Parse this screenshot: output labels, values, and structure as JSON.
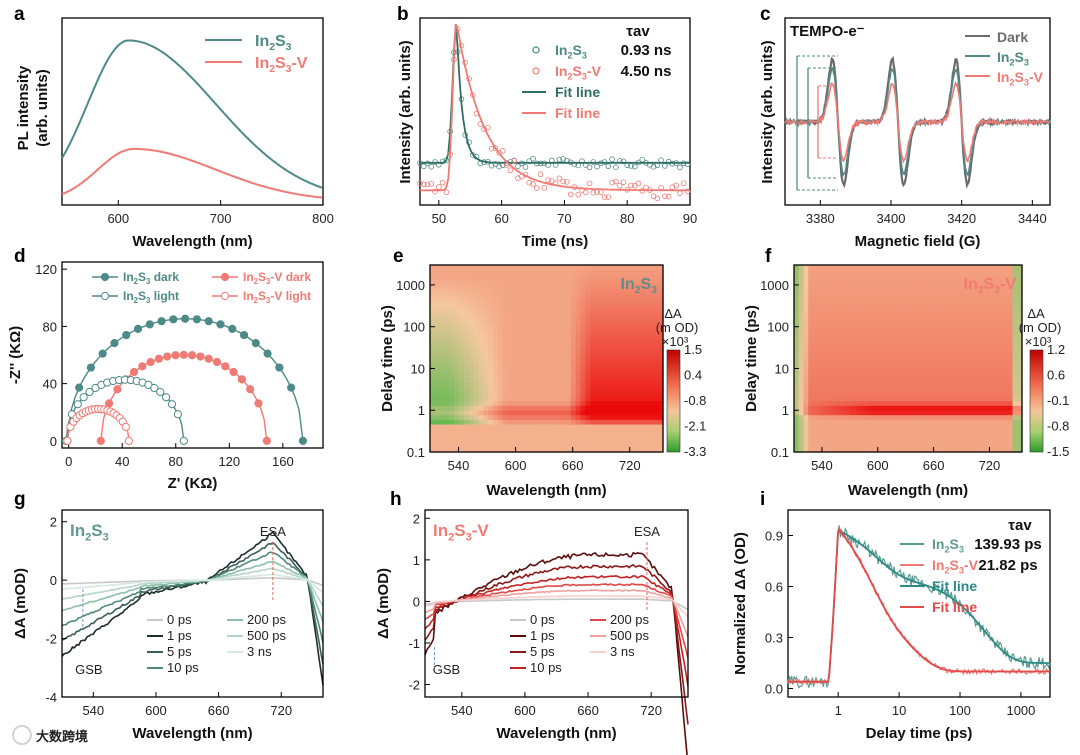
{
  "colors": {
    "teal": "#4e8a87",
    "salmon": "#f07a74",
    "tealDark": "#1f4a44",
    "redDark": "#7a1414"
  },
  "watermark": "大数跨境",
  "chart_data": [
    {
      "panel": "a",
      "type": "line",
      "xlabel": "Wavelength (nm)",
      "ylabel": "PL intensity (arb. units)",
      "xlim": [
        545,
        800
      ],
      "xticks": [
        600,
        700,
        800
      ],
      "legend": [
        "In2S3",
        "In2S3-V"
      ],
      "series": [
        {
          "name": "In2S3",
          "color": "#4e8a87",
          "peak_x": 610,
          "peak_y": 0.86,
          "width_l": 40,
          "width_r": 85,
          "base": 0.02
        },
        {
          "name": "In2S3-V",
          "color": "#f07a74",
          "peak_x": 615,
          "peak_y": 0.28,
          "width_l": 35,
          "width_r": 80,
          "base": 0.02
        }
      ]
    },
    {
      "panel": "b",
      "type": "scatter+line",
      "xlabel": "Time (ns)",
      "ylabel": "Intensity (arb. units)",
      "xlim": [
        47,
        90
      ],
      "xticks": [
        50,
        60,
        70,
        80,
        90
      ],
      "legend_header": "τav",
      "legend": [
        {
          "name": "In2S3",
          "value": "0.93 ns",
          "kind": "points",
          "color": "#4e8a87"
        },
        {
          "name": "In2S3-V",
          "value": "4.50 ns",
          "kind": "points",
          "color": "#f07a74"
        },
        {
          "name": "Fit line",
          "kind": "line",
          "color": "#2f6f66"
        },
        {
          "name": "Fit line",
          "kind": "line",
          "color": "#f07a74"
        }
      ],
      "series": [
        {
          "name": "In2S3",
          "t0": 52.8,
          "tau": 0.93,
          "base": 0.23,
          "color": "#4e8a87"
        },
        {
          "name": "In2S3-V",
          "t0": 52.8,
          "tau": 4.5,
          "base": 0.08,
          "color": "#f07a74"
        }
      ]
    },
    {
      "panel": "c",
      "type": "line",
      "title": "TEMPO-e⁻",
      "xlabel": "Magnetic field (G)",
      "ylabel": "Intensity (arb. units)",
      "xlim": [
        3370,
        3445
      ],
      "xticks": [
        3380,
        3400,
        3420,
        3440
      ],
      "legend": [
        "Dark",
        "In2S3",
        "In2S3-V"
      ],
      "lines_at": [
        3385,
        3402,
        3420
      ],
      "series": [
        {
          "name": "Dark",
          "amp": 1.0,
          "color": "#6b6b6b"
        },
        {
          "name": "In2S3",
          "amp": 0.85,
          "color": "#4e8a87"
        },
        {
          "name": "In2S3-V",
          "amp": 0.62,
          "color": "#f07a74"
        }
      ]
    },
    {
      "panel": "d",
      "type": "scatter",
      "xlabel": "Z' (KΩ)",
      "ylabel": "-Z'' (KΩ)",
      "xlim": [
        -5,
        190
      ],
      "ylim": [
        -5,
        125
      ],
      "xticks": [
        0,
        40,
        80,
        120,
        160
      ],
      "yticks": [
        0,
        40,
        80,
        120
      ],
      "legend": [
        "In2S3 dark",
        "In2S3-V dark",
        "In2S3 light",
        "In2S3-V light"
      ],
      "series": [
        {
          "name": "In2S3 dark",
          "center": 98,
          "radius": 88,
          "xmax": 175,
          "filled": true,
          "color": "#4e8a87"
        },
        {
          "name": "In2S3-V dark",
          "center": 73,
          "radius": 62,
          "xmax": 148,
          "filled": true,
          "color": "#f07a74"
        },
        {
          "name": "In2S3 light",
          "center": 40,
          "radius": 44,
          "xmax": 86,
          "filled": false,
          "color": "#4e8a87"
        },
        {
          "name": "In2S3-V light",
          "center": 22,
          "radius": 23,
          "xmax": 45,
          "filled": false,
          "color": "#f07a74"
        }
      ]
    },
    {
      "panel": "e",
      "type": "heatmap",
      "label": "In2S3",
      "xlabel": "Wavelength (nm)",
      "ylabel": "Delay time (ps)",
      "xlim": [
        510,
        755
      ],
      "xticks": [
        540,
        600,
        660,
        720
      ],
      "ylim_log": [
        0.1,
        3000
      ],
      "yticks": [
        "0.1",
        "1",
        "10",
        "100",
        "1000"
      ],
      "colorbar": {
        "title": "ΔA",
        "unit": "(m OD)",
        "scale": "×10³",
        "ticks": [
          "1.5",
          "0.4",
          "-0.8",
          "-2.1",
          "-3.3"
        ]
      }
    },
    {
      "panel": "f",
      "type": "heatmap",
      "label": "In2S3-V",
      "xlabel": "Wavelength (nm)",
      "ylabel": "Delay time (ps)",
      "xlim": [
        510,
        755
      ],
      "xticks": [
        540,
        600,
        660,
        720
      ],
      "ylim_log": [
        0.1,
        3000
      ],
      "yticks": [
        "0.1",
        "1",
        "10",
        "100",
        "1000"
      ],
      "colorbar": {
        "title": "ΔA",
        "unit": "(m OD)",
        "scale": "×10³",
        "ticks": [
          "1.2",
          "0.6",
          "-0.1",
          "-0.8",
          "-1.5"
        ]
      }
    },
    {
      "panel": "g",
      "type": "line",
      "label": "In2S3",
      "xlabel": "Wavelength (nm)",
      "ylabel": "ΔA (mOD)",
      "xlim": [
        510,
        760
      ],
      "ylim": [
        -4,
        2.4
      ],
      "xticks": [
        540,
        600,
        660,
        720
      ],
      "yticks": [
        2,
        0,
        -2,
        -4
      ],
      "annotations": [
        "ESA",
        "GSB"
      ],
      "series": [
        {
          "name": "0 ps",
          "color": "#c8c8c8",
          "scale": 0.05
        },
        {
          "name": "1 ps",
          "color": "#1d2e2b",
          "scale": 1.0
        },
        {
          "name": "5 ps",
          "color": "#3b5f57",
          "scale": 0.8
        },
        {
          "name": "10 ps",
          "color": "#4e8a78",
          "scale": 0.6
        },
        {
          "name": "200 ps",
          "color": "#8cbfa8",
          "scale": 0.4
        },
        {
          "name": "500 ps",
          "color": "#b5d6c6",
          "scale": 0.25
        },
        {
          "name": "3 ns",
          "color": "#d7e8df",
          "scale": 0.12
        }
      ]
    },
    {
      "panel": "h",
      "type": "line",
      "label": "In2S3-V",
      "xlabel": "Wavelength (nm)",
      "ylabel": "ΔA (mOD)",
      "xlim": [
        505,
        755
      ],
      "ylim": [
        -2.3,
        2.2
      ],
      "xticks": [
        540,
        600,
        660,
        720
      ],
      "yticks": [
        2,
        1,
        0,
        -1,
        -2
      ],
      "annotations": [
        "ESA",
        "GSB"
      ],
      "series": [
        {
          "name": "0 ps",
          "color": "#c8c8c8",
          "scale": 0.05
        },
        {
          "name": "1 ps",
          "color": "#5a0d0d",
          "scale": 1.0
        },
        {
          "name": "5 ps",
          "color": "#8b1818",
          "scale": 0.75
        },
        {
          "name": "10 ps",
          "color": "#c42222",
          "scale": 0.52
        },
        {
          "name": "200 ps",
          "color": "#e04848",
          "scale": 0.35
        },
        {
          "name": "500 ps",
          "color": "#f0a0a0",
          "scale": 0.22
        },
        {
          "name": "3 ns",
          "color": "#f6cfcf",
          "scale": 0.1
        }
      ]
    },
    {
      "panel": "i",
      "type": "line",
      "xlabel": "Delay time (ps)",
      "ylabel": "Normalized ΔA (OD)",
      "xlim_log": [
        0.15,
        3000
      ],
      "ylim": [
        -0.05,
        1.05
      ],
      "xticks": [
        "1",
        "10",
        "100",
        "1000"
      ],
      "yticks": [
        "0.0",
        "0.3",
        "0.6",
        "0.9"
      ],
      "legend_header": "τav",
      "legend": [
        {
          "name": "In2S3",
          "value": "139.93 ps",
          "color": "#5f9a92"
        },
        {
          "name": "In2S3-V",
          "value": "21.82 ps",
          "color": "#f07a74"
        },
        {
          "name": "Fit line",
          "color": "#2a8a86"
        },
        {
          "name": "Fit line",
          "color": "#e34a4a"
        }
      ],
      "series": [
        {
          "name": "In2S3",
          "tau": 139.93,
          "color": "#5f9a92"
        },
        {
          "name": "In2S3-V",
          "tau": 21.82,
          "color": "#f07a74"
        }
      ]
    }
  ]
}
